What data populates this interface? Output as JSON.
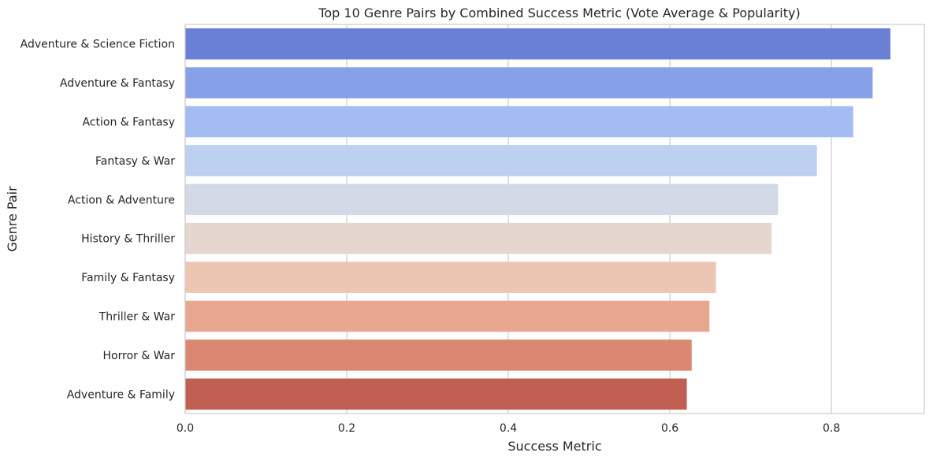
{
  "chart_data": {
    "type": "bar",
    "orientation": "horizontal",
    "title": "Top 10 Genre Pairs by Combined Success Metric (Vote Average & Popularity)",
    "xlabel": "Success Metric",
    "ylabel": "Genre Pair",
    "xlim": [
      0,
      0.915
    ],
    "xticks": [
      0.0,
      0.2,
      0.4,
      0.6,
      0.8
    ],
    "xtick_labels": [
      "0.0",
      "0.2",
      "0.4",
      "0.6",
      "0.8"
    ],
    "grid": true,
    "categories": [
      "Adventure & Science Fiction",
      "Adventure & Fantasy",
      "Action & Fantasy",
      "Fantasy & War",
      "Action & Adventure",
      "History & Thriller",
      "Family & Fantasy",
      "Thriller & War",
      "Horror & War",
      "Adventure & Family"
    ],
    "values": [
      0.873,
      0.851,
      0.827,
      0.782,
      0.734,
      0.726,
      0.657,
      0.649,
      0.627,
      0.621
    ],
    "colors": [
      "#6a80d5",
      "#86a1e7",
      "#a3bdf3",
      "#bdd0f2",
      "#d3d9e7",
      "#e5d7cf",
      "#ecc5b3",
      "#e8a890",
      "#db8873",
      "#c25f53"
    ],
    "grid_color": "#cccccc",
    "spine_color": "#cccccc"
  }
}
